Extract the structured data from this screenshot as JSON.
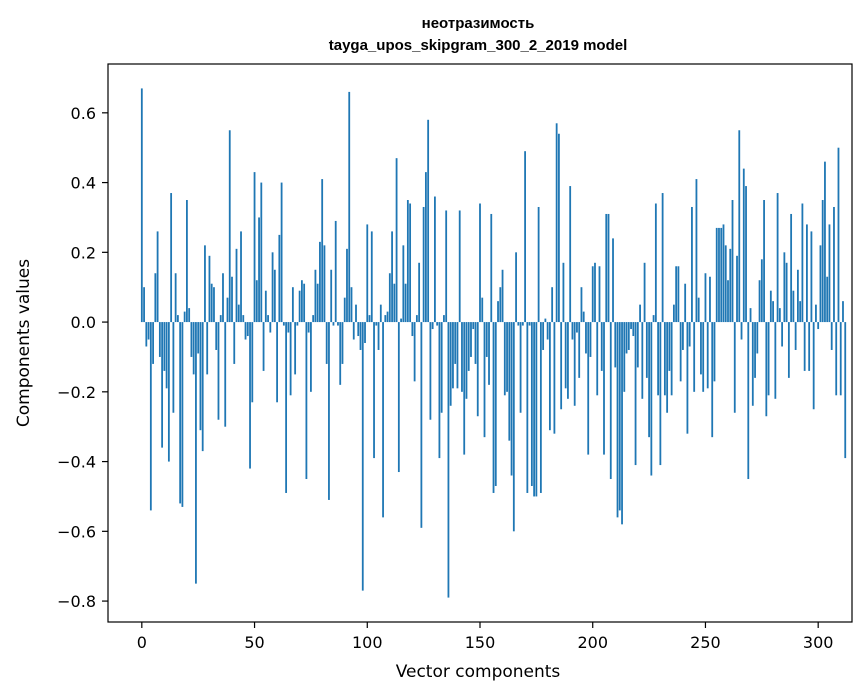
{
  "chart_data": {
    "type": "bar",
    "title": "неотразимость",
    "subtitle": "tayga_upos_skipgram_300_2_2019 model",
    "xlabel": "Vector components",
    "ylabel": "Components values",
    "xlim": [
      -15,
      315
    ],
    "ylim": [
      -0.86,
      0.74
    ],
    "xticks": [
      0,
      50,
      100,
      150,
      200,
      250,
      300
    ],
    "xtick_labels": [
      "0",
      "50",
      "100",
      "150",
      "200",
      "250",
      "300"
    ],
    "yticks": [
      -0.8,
      -0.6,
      -0.4,
      -0.2,
      0.0,
      0.2,
      0.4,
      0.6
    ],
    "ytick_labels": [
      "−0.8",
      "−0.6",
      "−0.4",
      "−0.2",
      "0.0",
      "0.2",
      "0.4",
      "0.6"
    ],
    "bar_color": "#1f77b4",
    "grid": false,
    "values": [
      0.67,
      0.1,
      -0.07,
      -0.05,
      -0.54,
      -0.12,
      0.14,
      0.26,
      -0.1,
      -0.36,
      -0.14,
      -0.19,
      -0.4,
      0.37,
      -0.26,
      0.14,
      0.02,
      -0.52,
      -0.53,
      0.03,
      0.35,
      0.04,
      -0.1,
      -0.15,
      -0.75,
      -0.09,
      -0.31,
      -0.37,
      0.22,
      -0.15,
      0.19,
      0.11,
      0.1,
      -0.08,
      -0.28,
      0.02,
      0.14,
      -0.3,
      0.07,
      0.55,
      0.13,
      -0.12,
      0.21,
      0.05,
      0.26,
      0.02,
      -0.05,
      -0.04,
      -0.42,
      -0.23,
      0.43,
      0.12,
      0.3,
      0.4,
      -0.14,
      0.09,
      0.02,
      -0.03,
      0.2,
      0.15,
      -0.23,
      0.25,
      0.4,
      -0.01,
      -0.49,
      -0.03,
      -0.21,
      0.1,
      -0.15,
      -0.01,
      0.09,
      0.12,
      0.11,
      -0.45,
      -0.03,
      -0.2,
      0.02,
      0.15,
      0.11,
      0.23,
      0.41,
      0.22,
      -0.12,
      -0.51,
      0.15,
      -0.01,
      0.29,
      -0.01,
      -0.18,
      -0.12,
      0.07,
      0.21,
      0.66,
      0.1,
      -0.05,
      0.05,
      -0.04,
      -0.08,
      -0.77,
      -0.06,
      0.28,
      0.02,
      0.26,
      -0.39,
      -0.01,
      -0.08,
      0.05,
      -0.56,
      0.02,
      0.03,
      0.14,
      0.26,
      0.11,
      0.47,
      -0.43,
      0.01,
      0.22,
      0.11,
      0.35,
      0.34,
      -0.04,
      -0.17,
      0.02,
      0.17,
      -0.59,
      0.33,
      0.43,
      0.58,
      -0.28,
      -0.02,
      0.36,
      -0.01,
      -0.39,
      -0.26,
      0.02,
      0.32,
      -0.79,
      -0.24,
      -0.19,
      -0.12,
      -0.19,
      0.32,
      -0.2,
      -0.38,
      -0.22,
      -0.14,
      -0.1,
      -0.02,
      -0.12,
      -0.27,
      0.34,
      0.07,
      -0.33,
      -0.1,
      -0.18,
      0.31,
      -0.49,
      -0.47,
      0.06,
      0.1,
      0.15,
      -0.21,
      -0.2,
      -0.34,
      -0.44,
      -0.6,
      0.2,
      -0.01,
      -0.26,
      -0.01,
      0.49,
      -0.49,
      -0.01,
      -0.47,
      -0.5,
      -0.5,
      0.33,
      -0.49,
      -0.08,
      0.01,
      -0.05,
      -0.31,
      0.1,
      -0.32,
      0.57,
      0.54,
      -0.25,
      0.17,
      -0.19,
      -0.22,
      0.39,
      -0.05,
      -0.24,
      -0.03,
      -0.16,
      0.1,
      0.03,
      -0.09,
      -0.38,
      -0.1,
      0.16,
      0.17,
      -0.21,
      0.16,
      -0.14,
      -0.38,
      0.31,
      0.31,
      -0.45,
      0.24,
      -0.13,
      -0.56,
      -0.54,
      -0.58,
      -0.2,
      -0.09,
      -0.08,
      -0.02,
      -0.04,
      -0.41,
      -0.13,
      0.05,
      -0.22,
      0.17,
      -0.16,
      -0.33,
      -0.44,
      0.02,
      0.34,
      -0.21,
      -0.41,
      0.37,
      -0.21,
      -0.26,
      -0.14,
      -0.21,
      0.05,
      0.16,
      0.16,
      -0.17,
      -0.08,
      0.11,
      -0.32,
      -0.07,
      0.33,
      -0.2,
      0.41,
      0.07,
      -0.15,
      -0.2,
      0.14,
      -0.19,
      0.13,
      -0.33,
      -0.17,
      0.27,
      0.27,
      0.27,
      0.28,
      0.22,
      0.12,
      0.21,
      0.35,
      -0.26,
      0.19,
      0.55,
      -0.05,
      0.44,
      0.39,
      -0.45,
      0.04,
      -0.24,
      -0.16,
      -0.09,
      0.12,
      0.18,
      0.35,
      -0.27,
      -0.21,
      0.09,
      0.06,
      -0.22,
      0.37,
      0.04,
      -0.07,
      0.2,
      0.17,
      -0.16,
      0.31,
      0.09,
      -0.08,
      0.15,
      0.06,
      0.34,
      -0.14,
      0.28,
      -0.14,
      0.26,
      -0.25,
      0.05,
      -0.02,
      0.22,
      0.35,
      0.46,
      0.13,
      0.28,
      -0.08,
      0.33,
      -0.21,
      0.5,
      -0.21,
      0.06,
      -0.39
    ]
  }
}
